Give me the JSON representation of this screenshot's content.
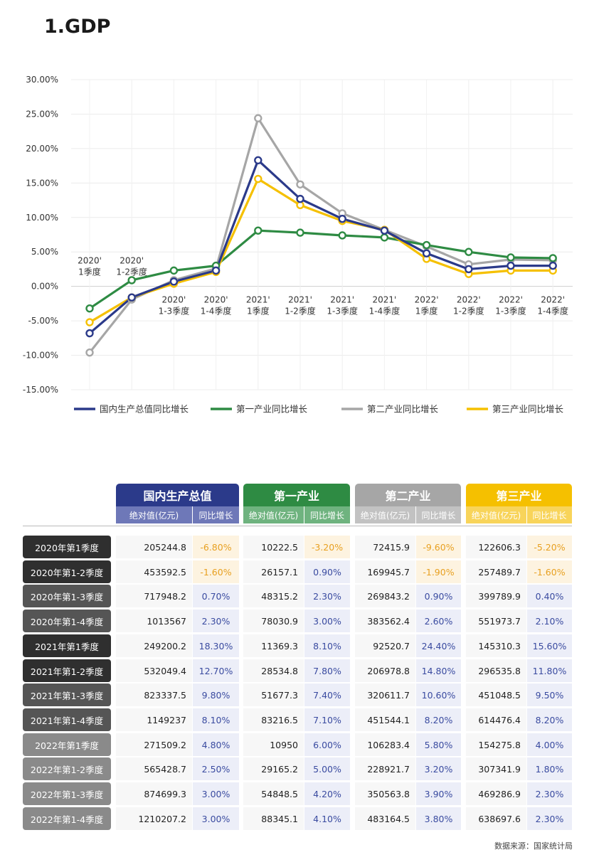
{
  "page_title": "1.GDP",
  "source": "数据来源：国家统计局",
  "colors": {
    "gdp": "#2b3a8a",
    "primary": "#2e8b43",
    "secondary": "#a6a6a6",
    "tertiary": "#f5c000",
    "dark_label": "#2f2f2f",
    "mid_label": "#555555",
    "light_label": "#8a8a8a",
    "neg_bg": "#fdf3e0",
    "pos_bg": "#eceef8",
    "neg_text": "#e8a020",
    "pos_text": "#3a4ba0"
  },
  "chart_data": {
    "type": "line",
    "title": "",
    "ylim": [
      -15,
      30
    ],
    "yticks": [
      "30.00%",
      "25.00%",
      "20.00%",
      "15.00%",
      "10.00%",
      "5.00%",
      "0.00%",
      "-5.00%",
      "-10.00%",
      "-15.00%"
    ],
    "categories": [
      [
        "2020'",
        "1季度"
      ],
      [
        "2020'",
        "1-2季度"
      ],
      [
        "2020'",
        "1-3季度"
      ],
      [
        "2020'",
        "1-4季度"
      ],
      [
        "2021'",
        "1季度"
      ],
      [
        "2021'",
        "1-2季度"
      ],
      [
        "2021'",
        "1-3季度"
      ],
      [
        "2021'",
        "1-4季度"
      ],
      [
        "2022'",
        "1季度"
      ],
      [
        "2022'",
        "1-2季度"
      ],
      [
        "2022'",
        "1-3季度"
      ],
      [
        "2022'",
        "1-4季度"
      ]
    ],
    "series": [
      {
        "name": "国内生产总值同比增长",
        "color": "#2b3a8a",
        "values": [
          -6.8,
          -1.6,
          0.7,
          2.3,
          18.3,
          12.7,
          9.8,
          8.1,
          4.8,
          2.5,
          3.0,
          3.0
        ]
      },
      {
        "name": "第一产业同比增长",
        "color": "#2e8b43",
        "values": [
          -3.2,
          0.9,
          2.3,
          3.0,
          8.1,
          7.8,
          7.4,
          7.1,
          6.0,
          5.0,
          4.2,
          4.1
        ]
      },
      {
        "name": "第二产业同比增长",
        "color": "#a6a6a6",
        "values": [
          -9.6,
          -1.9,
          0.9,
          2.6,
          24.4,
          14.8,
          10.6,
          8.2,
          5.8,
          3.2,
          3.9,
          3.8
        ]
      },
      {
        "name": "第三产业同比增长",
        "color": "#f5c000",
        "values": [
          -5.2,
          -1.6,
          0.4,
          2.1,
          15.6,
          11.8,
          9.5,
          8.2,
          4.0,
          1.8,
          2.3,
          2.3
        ]
      }
    ],
    "grid": true,
    "legend": "bottom"
  },
  "table": {
    "groups": [
      {
        "title": "国内生产总值",
        "color": "#2b3a8a",
        "sub_color": "#6e78b8",
        "sub_labels": [
          "绝对值(亿元)",
          "同比增长"
        ]
      },
      {
        "title": "第一产业",
        "color": "#2e8b43",
        "sub_color": "#6fb37f",
        "sub_labels": [
          "绝对值(亿元)",
          "同比增长"
        ]
      },
      {
        "title": "第二产业",
        "color": "#a6a6a6",
        "sub_color": "#c2c2c2",
        "sub_labels": [
          "绝对值(亿元)",
          "同比增长"
        ]
      },
      {
        "title": "第三产业",
        "color": "#f5c000",
        "sub_color": "#f8d45a",
        "sub_labels": [
          "绝对值(亿元)",
          "同比增长"
        ]
      }
    ],
    "rows": [
      {
        "label": "2020年第1季度",
        "shade": "dark",
        "cells": [
          "205244.8",
          "-6.80%",
          "10222.5",
          "-3.20%",
          "72415.9",
          "-9.60%",
          "122606.3",
          "-5.20%"
        ]
      },
      {
        "label": "2020年第1-2季度",
        "shade": "dark",
        "cells": [
          "453592.5",
          "-1.60%",
          "26157.1",
          "0.90%",
          "169945.7",
          "-1.90%",
          "257489.7",
          "-1.60%"
        ]
      },
      {
        "label": "2020年第1-3季度",
        "shade": "mid",
        "cells": [
          "717948.2",
          "0.70%",
          "48315.2",
          "2.30%",
          "269843.2",
          "0.90%",
          "399789.9",
          "0.40%"
        ]
      },
      {
        "label": "2020年第1-4季度",
        "shade": "mid",
        "cells": [
          "1013567",
          "2.30%",
          "78030.9",
          "3.00%",
          "383562.4",
          "2.60%",
          "551973.7",
          "2.10%"
        ]
      },
      {
        "label": "2021年第1季度",
        "shade": "dark",
        "cells": [
          "249200.2",
          "18.30%",
          "11369.3",
          "8.10%",
          "92520.7",
          "24.40%",
          "145310.3",
          "15.60%"
        ]
      },
      {
        "label": "2021年第1-2季度",
        "shade": "dark",
        "cells": [
          "532049.4",
          "12.70%",
          "28534.8",
          "7.80%",
          "206978.8",
          "14.80%",
          "296535.8",
          "11.80%"
        ]
      },
      {
        "label": "2021年第1-3季度",
        "shade": "mid",
        "cells": [
          "823337.5",
          "9.80%",
          "51677.3",
          "7.40%",
          "320611.7",
          "10.60%",
          "451048.5",
          "9.50%"
        ]
      },
      {
        "label": "2021年第1-4季度",
        "shade": "mid",
        "cells": [
          "1149237",
          "8.10%",
          "83216.5",
          "7.10%",
          "451544.1",
          "8.20%",
          "614476.4",
          "8.20%"
        ]
      },
      {
        "label": "2022年第1季度",
        "shade": "light",
        "cells": [
          "271509.2",
          "4.80%",
          "10950",
          "6.00%",
          "106283.4",
          "5.80%",
          "154275.8",
          "4.00%"
        ]
      },
      {
        "label": "2022年第1-2季度",
        "shade": "light",
        "cells": [
          "565428.7",
          "2.50%",
          "29165.2",
          "5.00%",
          "228921.7",
          "3.20%",
          "307341.9",
          "1.80%"
        ]
      },
      {
        "label": "2022年第1-3季度",
        "shade": "light",
        "cells": [
          "874699.3",
          "3.00%",
          "54848.5",
          "4.20%",
          "350563.8",
          "3.90%",
          "469286.9",
          "2.30%"
        ]
      },
      {
        "label": "2022年第1-4季度",
        "shade": "light",
        "cells": [
          "1210207.2",
          "3.00%",
          "88345.1",
          "4.10%",
          "483164.5",
          "3.80%",
          "638697.6",
          "2.30%"
        ]
      }
    ]
  }
}
